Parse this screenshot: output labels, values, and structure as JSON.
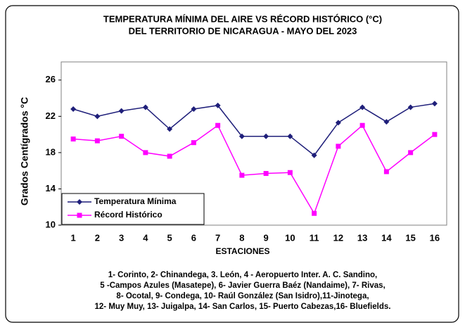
{
  "chart_data": {
    "type": "line",
    "title": [
      "TEMPERATURA  MÍNIMA DEL AIRE  VS  RÉCORD  HISTÓRICO  (°C)",
      "DEL TERRITORIO DE NICARAGUA  -  MAYO DEL 2023"
    ],
    "y_label": "Grados Centígrados °C",
    "x_label": "ESTACIONES",
    "categories": [
      "1",
      "2",
      "3",
      "4",
      "5",
      "6",
      "7",
      "8",
      "9",
      "10",
      "11",
      "12",
      "13",
      "14",
      "15",
      "16"
    ],
    "series": [
      {
        "name": "Temperatura Mínima",
        "color": "#1f1f7a",
        "marker": "diamond",
        "values": [
          22.8,
          22.0,
          22.6,
          23.0,
          20.6,
          22.8,
          23.2,
          19.8,
          19.8,
          19.8,
          17.7,
          21.3,
          23.0,
          21.4,
          23.0,
          23.4
        ]
      },
      {
        "name": "Récord Histórico",
        "color": "#ff00ff",
        "marker": "square",
        "values": [
          19.5,
          19.3,
          19.8,
          18.0,
          17.6,
          19.1,
          21.0,
          15.5,
          15.7,
          15.8,
          11.3,
          18.7,
          21.0,
          15.9,
          18.0,
          20.0
        ]
      }
    ],
    "ylim": [
      10,
      28
    ],
    "yticks": [
      10,
      14,
      18,
      22,
      26
    ],
    "grid": false,
    "legend": "lower-left",
    "footnote": [
      "1- Corinto,  2- Chinandega, 3. León, 4 - Aeropuerto Inter. A. C. Sandino,",
      "5 -Campos Azules (Masatepe), 6- Javier Guerra Baéz (Nandaime), 7- Rivas,",
      "8- Ocotal, 9- Condega, 10- Raúl González  (San Isidro),11-Jinotega,",
      "12- Muy Muy, 13- Juigalpa, 14- San Carlos, 15- Puerto Cabezas,16-  Bluefields."
    ]
  }
}
